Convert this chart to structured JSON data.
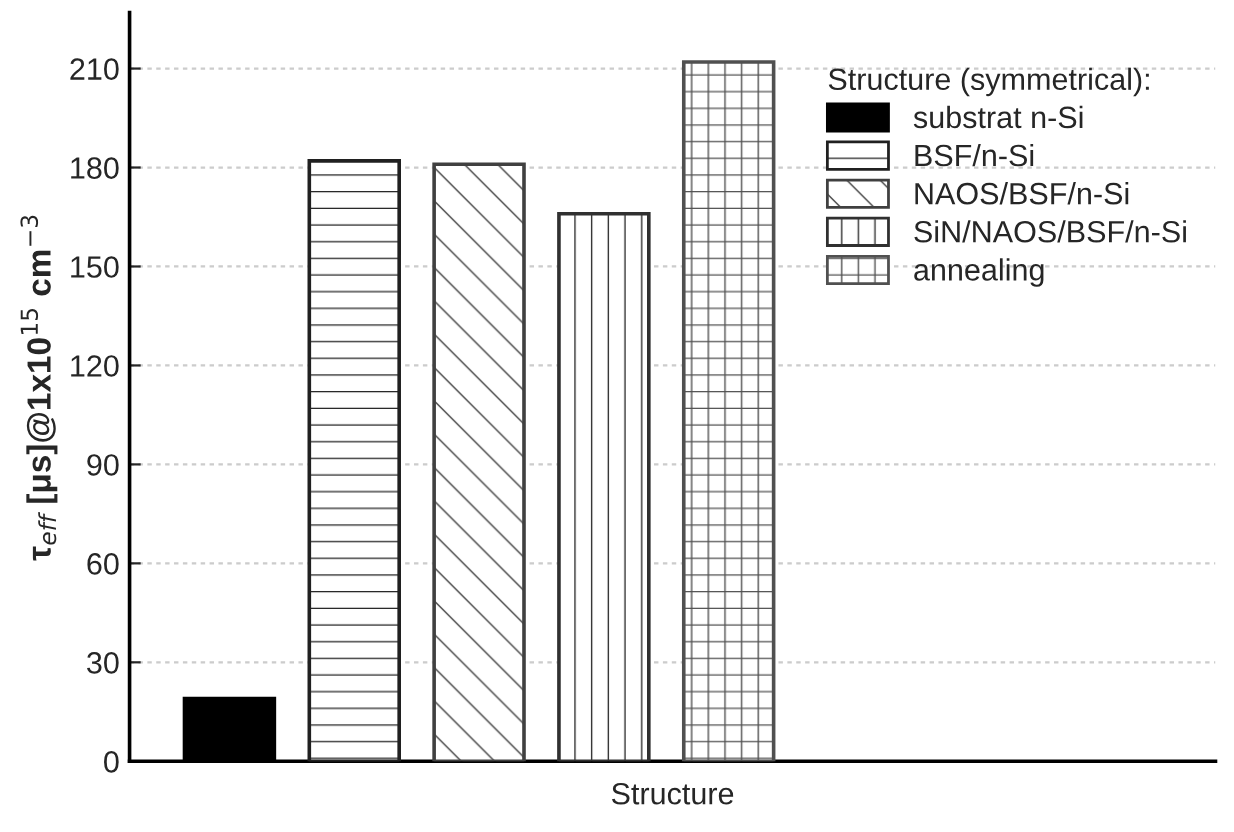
{
  "chart_data": {
    "type": "bar",
    "xlabel": "Structure",
    "ylabel": "τ$_{eff}$ [μs]@1x10$^{15}$ cm$^{−3}$",
    "legend_title": "Structure (symmetrical):",
    "categories": [
      null,
      null,
      null,
      null,
      null
    ],
    "series": [
      {
        "name": "substrat n-Si",
        "color": "#000000",
        "values": [
          19,
          null,
          null,
          null,
          null
        ]
      },
      {
        "name": "BSF/n-Si",
        "color": "#202020",
        "values": [
          null,
          182,
          null,
          null,
          null
        ]
      },
      {
        "name": "NAOS/BSF/n-Si",
        "color": "#404040",
        "values": [
          null,
          null,
          181,
          null,
          null
        ]
      },
      {
        "name": "SiN/NAOS/BSF/n-Si",
        "color": "#303030",
        "values": [
          null,
          null,
          null,
          166,
          null
        ]
      },
      {
        "name": "annealing",
        "color": "#505050",
        "values": [
          null,
          null,
          null,
          null,
          212
        ]
      }
    ],
    "ylim": [
      0,
      227
    ],
    "yticks": [
      0,
      30,
      60,
      90,
      120,
      150,
      180,
      210
    ],
    "stacked": true,
    "grid": "y",
    "legend": "right"
  }
}
